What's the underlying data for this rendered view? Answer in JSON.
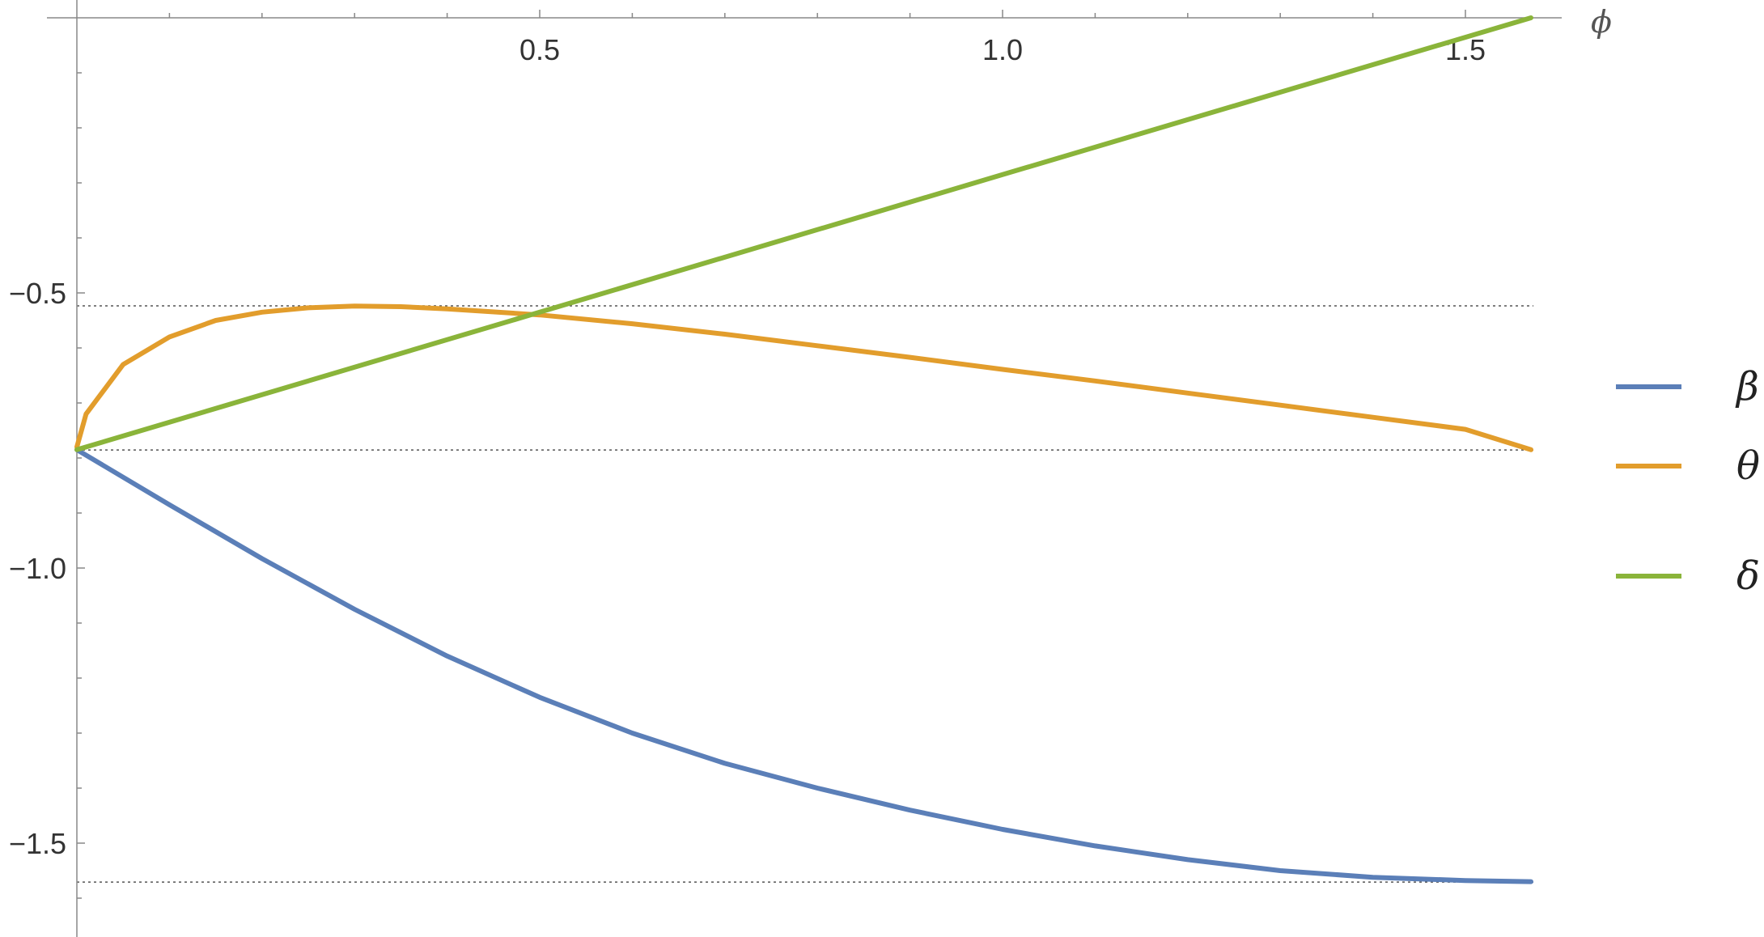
{
  "chart_data": {
    "type": "line",
    "xlabel": "ϕ",
    "ylabel": "",
    "xlim": [
      0,
      1.5708
    ],
    "ylim": [
      -1.6,
      -0.25
    ],
    "x_ticks": [
      {
        "value": 0.5,
        "label": "0.5"
      },
      {
        "value": 1.0,
        "label": "1.0"
      },
      {
        "value": 1.5,
        "label": "1.5"
      }
    ],
    "y_ticks": [
      {
        "value": -0.5,
        "label": "−0.5"
      },
      {
        "value": -1.0,
        "label": "−1.0"
      },
      {
        "value": -1.5,
        "label": "−1.5"
      }
    ],
    "reference_lines": [
      -0.5236,
      -0.7854,
      -1.5708
    ],
    "legend_position": "right",
    "grid": false,
    "series": [
      {
        "name": "β",
        "color": "#5b7fb8",
        "x": [
          0,
          0.1,
          0.2,
          0.3,
          0.4,
          0.5,
          0.6,
          0.7,
          0.8,
          0.9,
          1.0,
          1.1,
          1.2,
          1.3,
          1.4,
          1.5,
          1.5708
        ],
        "y": [
          -0.785,
          -0.885,
          -0.983,
          -1.075,
          -1.16,
          -1.235,
          -1.3,
          -1.355,
          -1.4,
          -1.44,
          -1.475,
          -1.505,
          -1.53,
          -1.55,
          -1.562,
          -1.568,
          -1.57
        ]
      },
      {
        "name": "θ",
        "color": "#e29d2c",
        "x": [
          0,
          0.01,
          0.05,
          0.1,
          0.15,
          0.2,
          0.25,
          0.3,
          0.35,
          0.4,
          0.5,
          0.6,
          0.7,
          0.8,
          0.9,
          1.0,
          1.1,
          1.2,
          1.3,
          1.4,
          1.5,
          1.5708
        ],
        "y": [
          -0.78,
          -0.72,
          -0.63,
          -0.58,
          -0.55,
          -0.535,
          -0.527,
          -0.524,
          -0.525,
          -0.529,
          -0.54,
          -0.556,
          -0.575,
          -0.596,
          -0.617,
          -0.639,
          -0.66,
          -0.682,
          -0.704,
          -0.726,
          -0.748,
          -0.785
        ]
      },
      {
        "name": "δ",
        "color": "#8ab43a",
        "x": [
          0,
          0.5,
          1.0,
          1.5708
        ],
        "y": [
          -0.785,
          -0.535,
          -0.285,
          0.0
        ]
      }
    ]
  }
}
